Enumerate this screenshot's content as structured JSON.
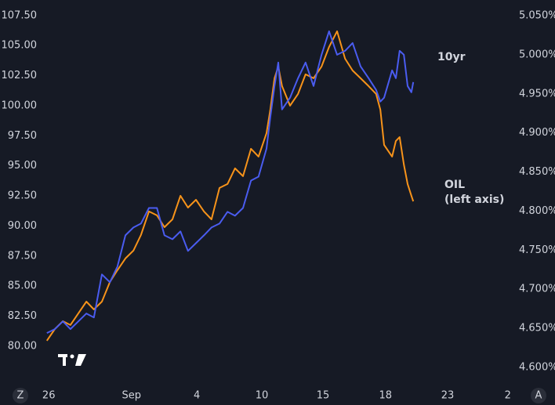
{
  "chart_data": {
    "type": "line",
    "x": [
      0.8,
      2.5,
      4.2,
      5.8,
      7.5,
      9.2,
      10.8,
      12.5,
      14.2,
      15.8,
      17.5,
      19.2,
      20.8,
      22.5,
      24.2,
      25.8,
      27.5,
      29.2,
      30.8,
      32.5,
      34.2,
      35.8,
      37.5,
      39.2,
      40.8,
      42.5,
      44.2,
      45.8,
      47.5,
      48.3,
      49.2,
      50,
      50.8,
      52.5,
      54.2,
      55.8,
      57.5,
      59.2,
      60.8,
      62.5,
      64.2,
      65.8,
      67.5,
      69.2,
      70.8,
      71.7,
      72.5,
      74.2,
      75,
      75.8,
      76.7,
      77.5,
      78.3,
      78.7
    ],
    "series": [
      {
        "name": "OIL",
        "color": "#f7931a",
        "axis": "y",
        "values": [
          80.46,
          81.43,
          82.08,
          81.76,
          82.74,
          83.71,
          83.06,
          83.71,
          85.34,
          86.32,
          87.3,
          87.95,
          89.25,
          91.21,
          90.88,
          89.9,
          90.55,
          92.51,
          91.53,
          92.18,
          91.21,
          90.55,
          93.16,
          93.49,
          94.79,
          94.14,
          96.42,
          95.77,
          97.72,
          99.67,
          102.28,
          103.26,
          101.63,
          100.0,
          100.98,
          102.61,
          102.28,
          103.26,
          104.89,
          106.19,
          103.91,
          102.93,
          102.28,
          101.63,
          100.98,
          99.67,
          96.74,
          95.77,
          97.07,
          97.39,
          95.11,
          93.49,
          92.51,
          92.05
        ]
      },
      {
        "name": "10yr",
        "color": "#4a5cf0",
        "axis": "y2",
        "values": [
          4.644,
          4.649,
          4.659,
          4.649,
          4.659,
          4.669,
          4.664,
          4.719,
          4.709,
          4.729,
          4.769,
          4.779,
          4.784,
          4.804,
          4.804,
          4.769,
          4.764,
          4.774,
          4.749,
          4.759,
          4.769,
          4.779,
          4.784,
          4.799,
          4.794,
          4.804,
          4.839,
          4.844,
          4.88,
          4.92,
          4.96,
          4.99,
          4.93,
          4.945,
          4.97,
          4.99,
          4.96,
          5.0,
          5.03,
          5.0,
          5.005,
          5.015,
          4.985,
          4.97,
          4.955,
          4.94,
          4.945,
          4.98,
          4.97,
          5.005,
          5.0,
          4.96,
          4.952,
          4.965
        ]
      }
    ],
    "series_note": "(left axis)",
    "xlim": [
      0,
      100
    ],
    "xticks": [
      {
        "value": 1.2,
        "label": "26"
      },
      {
        "value": 18.8,
        "label": "Sep"
      },
      {
        "value": 32.7,
        "label": "4"
      },
      {
        "value": 46.5,
        "label": "10"
      },
      {
        "value": 59.5,
        "label": "15"
      },
      {
        "value": 72.8,
        "label": "18"
      },
      {
        "value": 86,
        "label": "23"
      },
      {
        "value": 98.8,
        "label": "2"
      }
    ],
    "ylim": [
      76.87,
      108.79
    ],
    "yticks": [
      {
        "value": 80,
        "label": "80.00"
      },
      {
        "value": 82.5,
        "label": "82.50"
      },
      {
        "value": 85,
        "label": "85.00"
      },
      {
        "value": 87.5,
        "label": "87.50"
      },
      {
        "value": 90,
        "label": "90.00"
      },
      {
        "value": 92.5,
        "label": "92.50"
      },
      {
        "value": 95,
        "label": "95.00"
      },
      {
        "value": 97.5,
        "label": "97.50"
      },
      {
        "value": 100,
        "label": "100.00"
      },
      {
        "value": 102.5,
        "label": "102.50"
      },
      {
        "value": 105,
        "label": "105.00"
      },
      {
        "value": 107.5,
        "label": "107.50"
      }
    ],
    "y2lim": [
      4.579,
      5.07
    ],
    "y2ticks": [
      {
        "value": 4.6,
        "label": "4.600%"
      },
      {
        "value": 4.65,
        "label": "4.650%"
      },
      {
        "value": 4.7,
        "label": "4.700%"
      },
      {
        "value": 4.75,
        "label": "4.750%"
      },
      {
        "value": 4.8,
        "label": "4.800%"
      },
      {
        "value": 4.85,
        "label": "4.850%"
      },
      {
        "value": 4.9,
        "label": "4.900%"
      },
      {
        "value": 4.95,
        "label": "4.950%"
      },
      {
        "value": 5.0,
        "label": "5.000%"
      },
      {
        "value": 5.05,
        "label": "5.050%"
      }
    ],
    "grid": false
  },
  "controls": {
    "left": "Z",
    "right": "A"
  }
}
